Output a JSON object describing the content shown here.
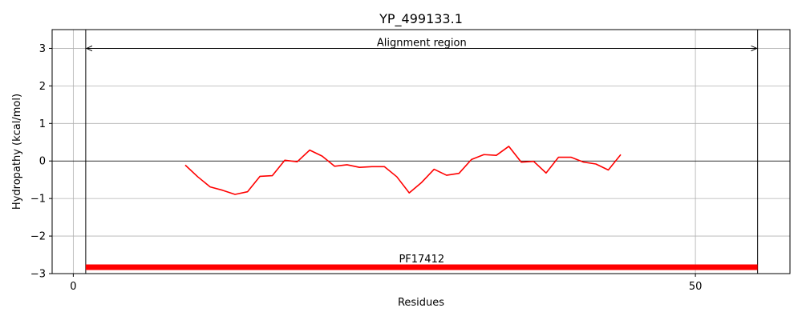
{
  "chart_data": {
    "type": "line",
    "title": "YP_499133.1",
    "xlabel": "Residues",
    "ylabel": "Hydropathy (kcal/mol)",
    "xlim": [
      -1.7,
      57.6
    ],
    "ylim": [
      -3,
      3.5
    ],
    "xticks": [
      0,
      50
    ],
    "xtick_labels": [
      "0",
      "50"
    ],
    "yticks": [
      -3,
      -2,
      -1,
      0,
      1,
      2,
      3
    ],
    "ytick_labels": [
      "−3",
      "−2",
      "−1",
      "0",
      "1",
      "2",
      "3"
    ],
    "grid": true,
    "zero_line": true,
    "series": [
      {
        "color": "#ff0000",
        "x": [
          9,
          10,
          11,
          12,
          13,
          14,
          15,
          16,
          17,
          18,
          19,
          20,
          21,
          22,
          23,
          24,
          25,
          26,
          27,
          28,
          29,
          30,
          31,
          32,
          33,
          34,
          35,
          36,
          37,
          38,
          39,
          40,
          41,
          42,
          43,
          44
        ],
        "values": [
          -0.11,
          -0.42,
          -0.69,
          -0.78,
          -0.89,
          -0.82,
          -0.41,
          -0.39,
          0.02,
          -0.02,
          0.29,
          0.13,
          -0.14,
          -0.1,
          -0.17,
          -0.15,
          -0.15,
          -0.42,
          -0.85,
          -0.57,
          -0.22,
          -0.38,
          -0.33,
          0.04,
          0.17,
          0.15,
          0.39,
          -0.03,
          -0.01,
          -0.32,
          0.1,
          0.1,
          -0.03,
          -0.08,
          -0.24,
          0.17
        ]
      }
    ],
    "vlines": [
      1,
      55
    ],
    "alignment_region": {
      "label": "Alignment region",
      "start": 1,
      "end": 55,
      "y": 3
    },
    "domains": [
      {
        "label": "PF17412",
        "start": 1,
        "end": 55,
        "y": -2.83,
        "color": "#ff0000"
      }
    ]
  }
}
